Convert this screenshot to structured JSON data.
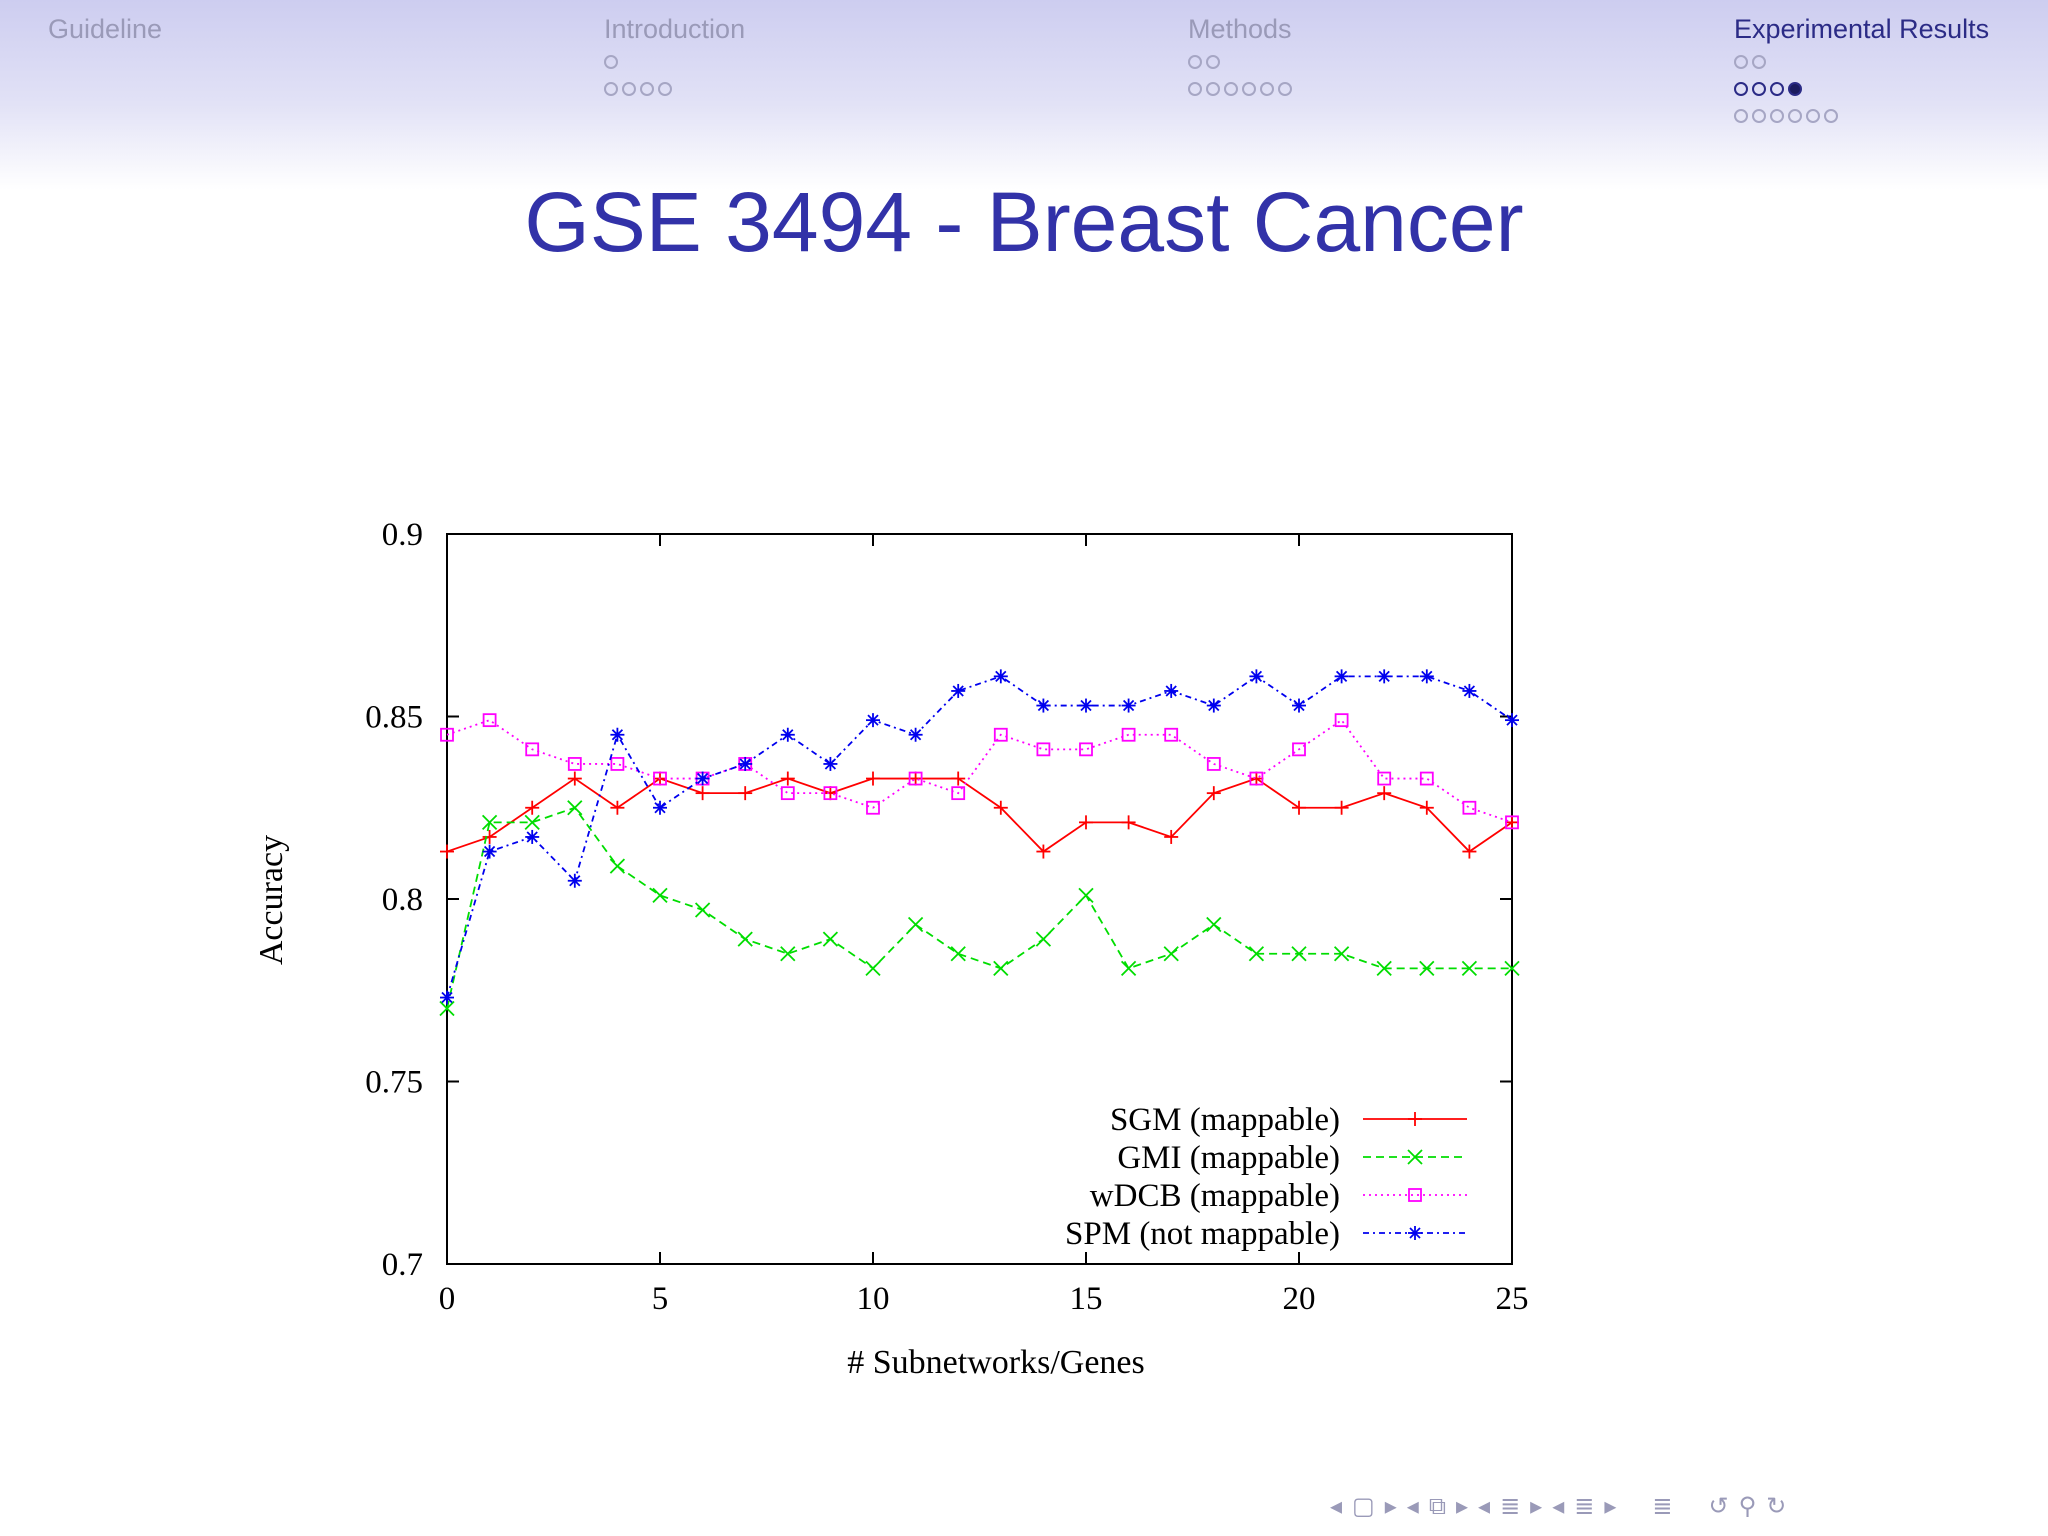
{
  "slide": {
    "title": "GSE 3494 - Breast Cancer"
  },
  "nav": {
    "sections": [
      {
        "name": "Guideline",
        "active": false,
        "rows": []
      },
      {
        "name": "Introduction",
        "active": false,
        "rows": [
          1,
          4
        ]
      },
      {
        "name": "Methods",
        "active": false,
        "rows": [
          2,
          6
        ]
      },
      {
        "name": "Experimental Results",
        "active": true,
        "rows": [
          2,
          4,
          6
        ],
        "current_row": 1,
        "current_index": 3
      }
    ]
  },
  "chart_data": {
    "type": "line",
    "title": "",
    "xlabel": "# Subnetworks/Genes",
    "ylabel": "Accuracy",
    "xlim": [
      0,
      25
    ],
    "ylim": [
      0.7,
      0.9
    ],
    "xticks": [
      "0",
      "5",
      "10",
      "15",
      "20",
      "25"
    ],
    "yticks": [
      "0.7",
      "0.75",
      "0.8",
      "0.85",
      "0.9"
    ],
    "legend_position": "bottom-right",
    "grid": false,
    "x": [
      0,
      1,
      2,
      3,
      4,
      5,
      6,
      7,
      8,
      9,
      10,
      11,
      12,
      13,
      14,
      15,
      16,
      17,
      18,
      19,
      20,
      21,
      22,
      23,
      24,
      25
    ],
    "series": [
      {
        "name": "SGM (mappable)",
        "color": "#ff0000",
        "marker": "plus",
        "dash": "none",
        "values": [
          0.813,
          0.817,
          0.825,
          0.833,
          0.825,
          0.833,
          0.829,
          0.829,
          0.833,
          0.829,
          0.833,
          0.833,
          0.833,
          0.825,
          0.813,
          0.821,
          0.821,
          0.817,
          0.829,
          0.833,
          0.825,
          0.825,
          0.829,
          0.825,
          0.813,
          0.821
        ]
      },
      {
        "name": "GMI (mappable)",
        "color": "#00dd00",
        "marker": "x",
        "dash": "dashed",
        "values": [
          0.77,
          0.821,
          0.821,
          0.825,
          0.809,
          0.801,
          0.797,
          0.789,
          0.785,
          0.789,
          0.781,
          0.793,
          0.785,
          0.781,
          0.789,
          0.801,
          0.781,
          0.785,
          0.793,
          0.785,
          0.785,
          0.785,
          0.781,
          0.781,
          0.781,
          0.781
        ]
      },
      {
        "name": "wDCB (mappable)",
        "color": "#ff00ff",
        "marker": "square",
        "dash": "dotted",
        "values": [
          0.845,
          0.849,
          0.841,
          0.837,
          0.837,
          0.833,
          0.833,
          0.837,
          0.829,
          0.829,
          0.825,
          0.833,
          0.829,
          0.845,
          0.841,
          0.841,
          0.845,
          0.845,
          0.837,
          0.833,
          0.841,
          0.849,
          0.833,
          0.833,
          0.825,
          0.821
        ]
      },
      {
        "name": "SPM (not mappable)",
        "color": "#0000ee",
        "marker": "star",
        "dash": "dashdot",
        "values": [
          0.773,
          0.813,
          0.817,
          0.805,
          0.845,
          0.825,
          0.833,
          0.837,
          0.845,
          0.837,
          0.849,
          0.845,
          0.857,
          0.861,
          0.853,
          0.853,
          0.853,
          0.857,
          0.853,
          0.861,
          0.853,
          0.861,
          0.861,
          0.861,
          0.857,
          0.849
        ]
      }
    ]
  },
  "controls": {
    "icons": [
      "nav-left-arrow-icon",
      "frame-icon",
      "nav-right-arrow-icon",
      "nav-left-arrow-icon",
      "subsection-icon",
      "nav-right-arrow-icon",
      "nav-left-arrow-icon",
      "section-icon",
      "nav-right-arrow-icon",
      "nav-left-arrow-icon",
      "subsection-align-icon",
      "nav-right-arrow-icon",
      "appendix-icon",
      "undo-icon",
      "zoom-icon",
      "redo-icon"
    ]
  }
}
